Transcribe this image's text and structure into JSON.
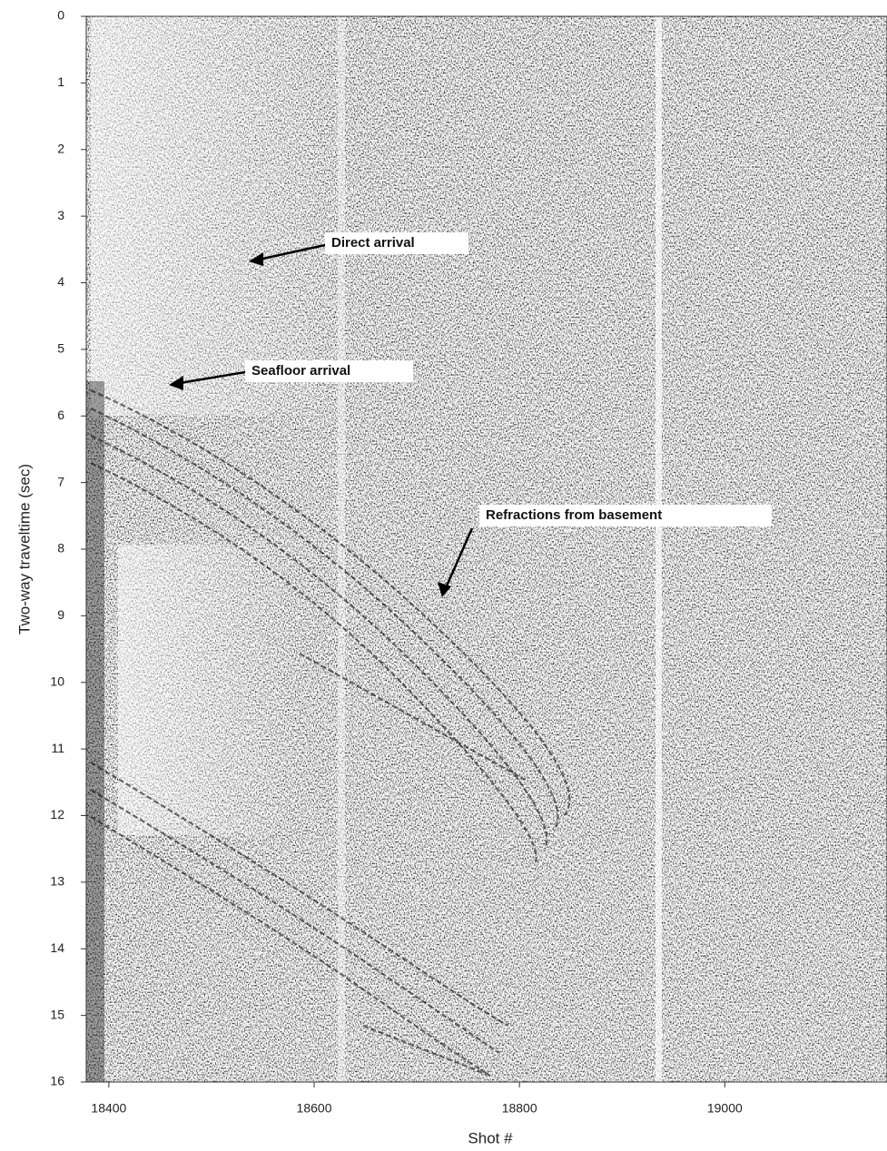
{
  "chart_data": {
    "type": "seismic",
    "x_label": "Shot #",
    "y_label": "Two-way traveltime (sec)",
    "xlim": [
      18378,
      19158
    ],
    "xticks": [
      18400,
      18600,
      18800,
      19000
    ],
    "ylim": [
      16,
      0
    ],
    "yticks": [
      0,
      1,
      2,
      3,
      4,
      5,
      6,
      7,
      8,
      9,
      10,
      11,
      12,
      13,
      14,
      15,
      16
    ],
    "annotations": [
      "Direct arrival",
      "Seafloor arrival",
      "Refractions from basement"
    ]
  }
}
